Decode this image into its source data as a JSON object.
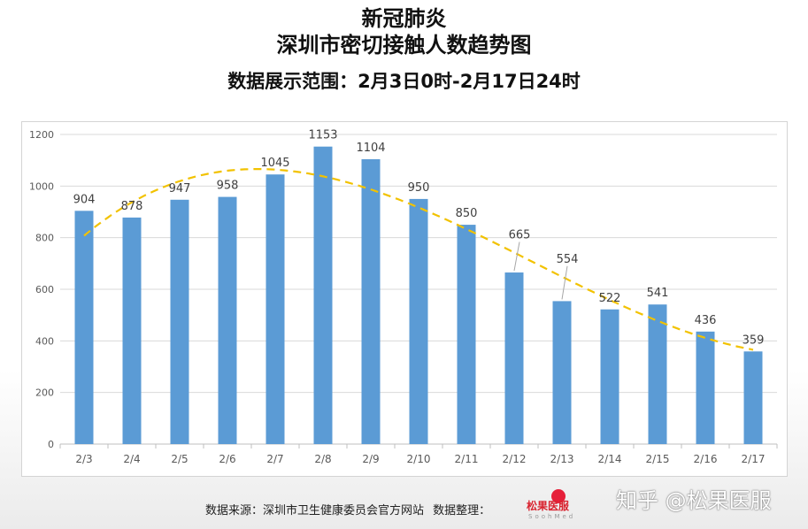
{
  "header": {
    "title_line1": "新冠肺炎",
    "title_line2": "深圳市密切接触人数趋势图",
    "subtitle": "数据展示范围：2月3日0时-2月17日24时"
  },
  "footer": {
    "source": "数据来源：深圳市卫生健康委员会官方网站",
    "organizer_label": "数据整理：",
    "logo_text": "松果医服",
    "logo_sub": "SoohMed",
    "watermark": "知乎 @松果医服"
  },
  "chart_data": {
    "type": "bar",
    "categories": [
      "2/3",
      "2/4",
      "2/5",
      "2/6",
      "2/7",
      "2/8",
      "2/9",
      "2/10",
      "2/11",
      "2/12",
      "2/13",
      "2/14",
      "2/15",
      "2/16",
      "2/17"
    ],
    "values": [
      904,
      878,
      947,
      958,
      1045,
      1153,
      1104,
      950,
      850,
      665,
      554,
      522,
      541,
      436,
      359
    ],
    "ylim": [
      0,
      1200
    ],
    "yticks": [
      0,
      200,
      400,
      600,
      800,
      1000,
      1200
    ],
    "grid": true,
    "trendline": {
      "type": "polynomial",
      "style": "dashed",
      "color": "#f2c200"
    },
    "bar_color": "#5b9bd5",
    "grid_color": "#d9d9d9"
  }
}
